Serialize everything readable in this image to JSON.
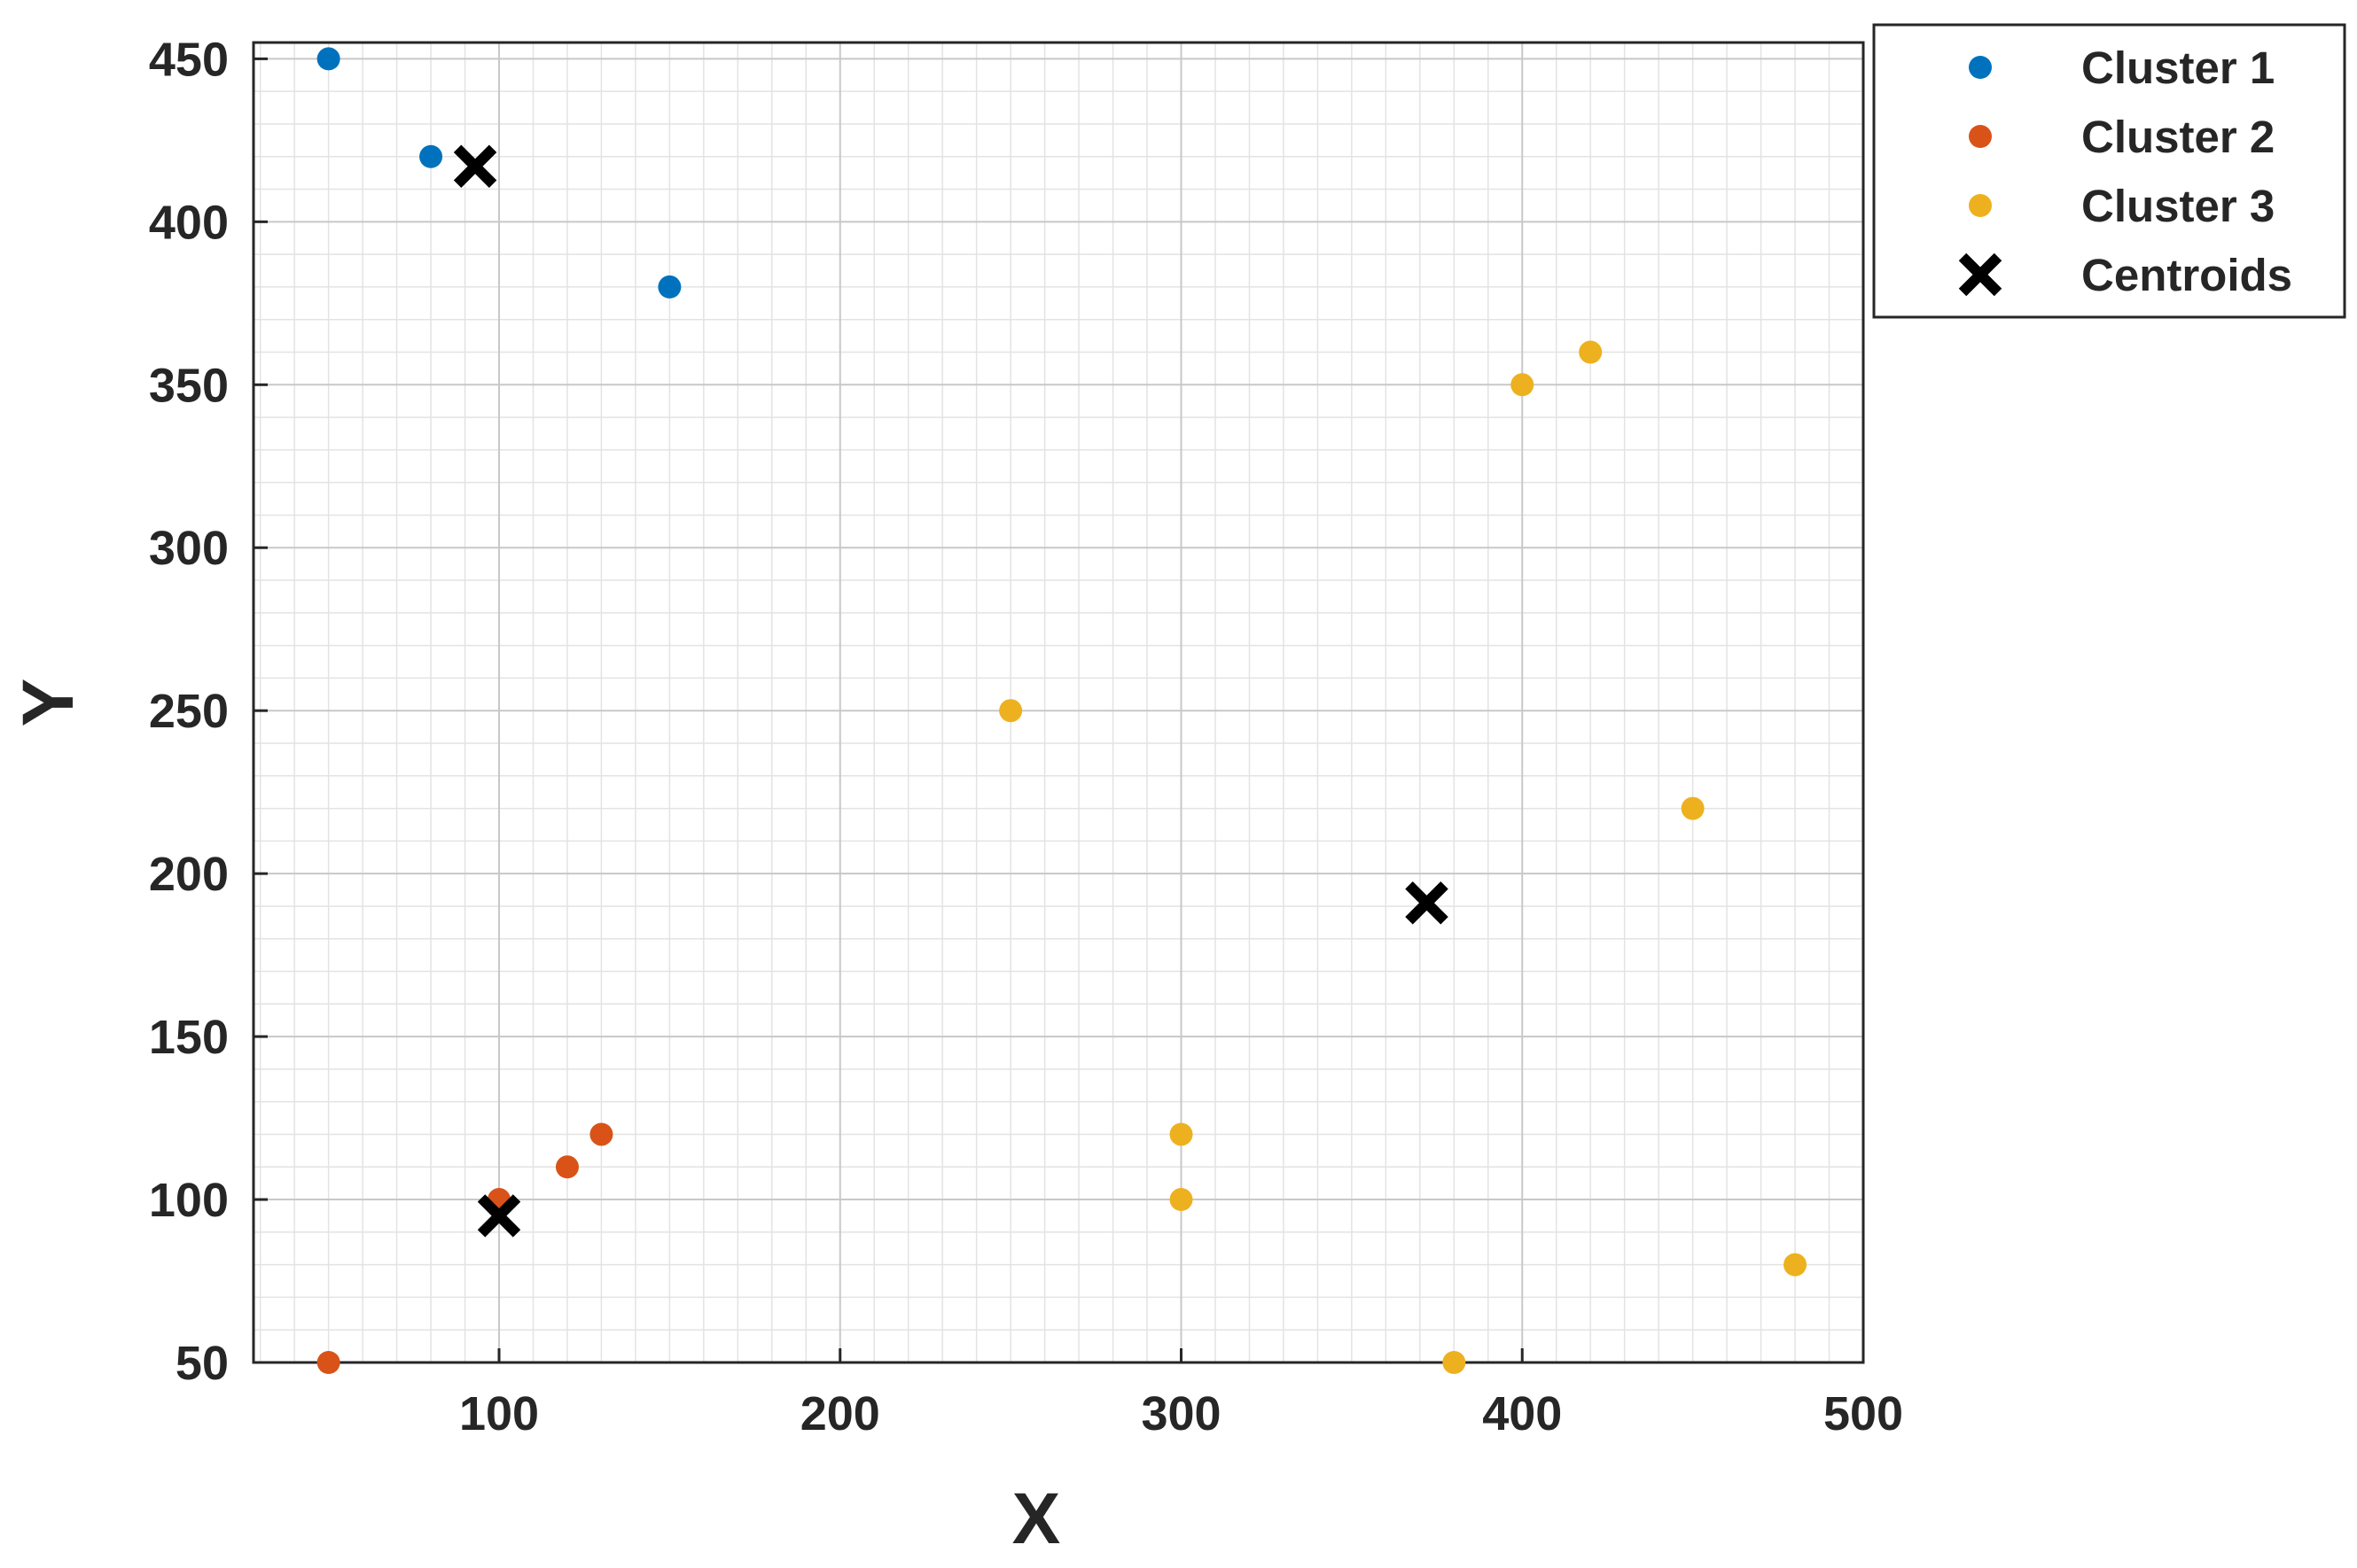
{
  "chart_data": {
    "type": "scatter",
    "title": "",
    "xlabel": "X",
    "ylabel": "Y",
    "xlim": [
      28,
      500
    ],
    "ylim": [
      50,
      455
    ],
    "xticks": [
      100,
      200,
      300,
      400,
      500
    ],
    "yticks": [
      50,
      100,
      150,
      200,
      250,
      300,
      350,
      400,
      450
    ],
    "xtick_labels": [
      "100",
      "200",
      "300",
      "400",
      "500"
    ],
    "ytick_labels": [
      "50",
      "100",
      "150",
      "200",
      "250",
      "300",
      "350",
      "400",
      "450"
    ],
    "grid": true,
    "minor_grid": true,
    "legend_position": "outside top-right",
    "series": [
      {
        "name": "Cluster 1",
        "marker": "dot",
        "color": "#0072BD",
        "points": [
          [
            50,
            450
          ],
          [
            80,
            420
          ],
          [
            150,
            380
          ]
        ]
      },
      {
        "name": "Cluster 2",
        "marker": "dot",
        "color": "#D95319",
        "points": [
          [
            50,
            50
          ],
          [
            100,
            100
          ],
          [
            120,
            110
          ],
          [
            130,
            120
          ]
        ]
      },
      {
        "name": "Cluster 3",
        "marker": "dot",
        "color": "#EDB120",
        "points": [
          [
            250,
            250
          ],
          [
            300,
            100
          ],
          [
            300,
            120
          ],
          [
            380,
            50
          ],
          [
            400,
            350
          ],
          [
            420,
            360
          ],
          [
            450,
            220
          ],
          [
            480,
            80
          ]
        ]
      },
      {
        "name": "Centroids",
        "marker": "x",
        "color": "#000000",
        "points": [
          [
            93,
            417
          ],
          [
            100,
            95
          ],
          [
            372,
            191
          ]
        ]
      }
    ]
  }
}
